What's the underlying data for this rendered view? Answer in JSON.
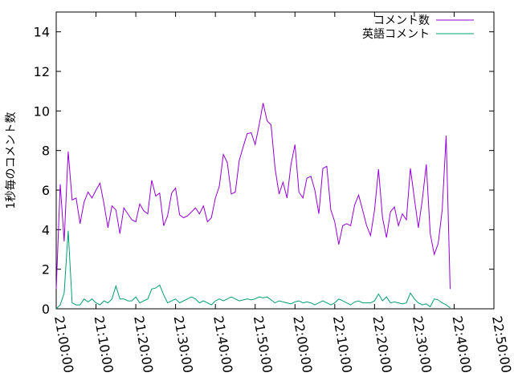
{
  "chart_data": {
    "type": "line",
    "title": "",
    "xlabel": "",
    "ylabel": "1秒毎のコメント数",
    "xlim": [
      "21:00:00",
      "22:50:00"
    ],
    "ylim": [
      0,
      15
    ],
    "x_ticks": [
      "21:00:00",
      "21:10:00",
      "21:20:00",
      "21:30:00",
      "21:40:00",
      "21:50:00",
      "22:00:00",
      "22:10:00",
      "22:20:00",
      "22:30:00",
      "22:40:00",
      "22:50:00"
    ],
    "y_ticks": [
      "0",
      "2",
      "4",
      "6",
      "8",
      "10",
      "12",
      "14"
    ],
    "grid": false,
    "legend_position": "top-right",
    "series": [
      {
        "name": "コメント数",
        "color": "#9400d3",
        "points": [
          [
            "21:00:00",
            1.0
          ],
          [
            "21:01:00",
            6.3
          ],
          [
            "21:02:00",
            3.4
          ],
          [
            "21:03:00",
            7.95
          ],
          [
            "21:04:00",
            5.5
          ],
          [
            "21:05:00",
            5.6
          ],
          [
            "21:06:00",
            4.3
          ],
          [
            "21:07:00",
            5.4
          ],
          [
            "21:08:00",
            5.9
          ],
          [
            "21:09:00",
            5.6
          ],
          [
            "21:10:00",
            6.0
          ],
          [
            "21:11:00",
            6.35
          ],
          [
            "21:12:00",
            5.3
          ],
          [
            "21:13:00",
            4.1
          ],
          [
            "21:14:00",
            5.2
          ],
          [
            "21:15:00",
            5.0
          ],
          [
            "21:16:00",
            3.8
          ],
          [
            "21:17:00",
            5.1
          ],
          [
            "21:18:00",
            4.8
          ],
          [
            "21:19:00",
            4.5
          ],
          [
            "21:20:00",
            4.4
          ],
          [
            "21:21:00",
            5.3
          ],
          [
            "21:22:00",
            4.95
          ],
          [
            "21:23:00",
            4.8
          ],
          [
            "21:24:00",
            6.5
          ],
          [
            "21:25:00",
            5.7
          ],
          [
            "21:26:00",
            5.85
          ],
          [
            "21:27:00",
            4.2
          ],
          [
            "21:28:00",
            4.7
          ],
          [
            "21:29:00",
            5.85
          ],
          [
            "21:30:00",
            6.1
          ],
          [
            "21:31:00",
            4.75
          ],
          [
            "21:32:00",
            4.6
          ],
          [
            "21:33:00",
            4.7
          ],
          [
            "21:34:00",
            4.9
          ],
          [
            "21:35:00",
            5.1
          ],
          [
            "21:36:00",
            4.8
          ],
          [
            "21:37:00",
            5.2
          ],
          [
            "21:38:00",
            4.4
          ],
          [
            "21:39:00",
            4.6
          ],
          [
            "21:40:00",
            5.6
          ],
          [
            "21:41:00",
            6.2
          ],
          [
            "21:42:00",
            7.8
          ],
          [
            "21:43:00",
            7.4
          ],
          [
            "21:44:00",
            5.8
          ],
          [
            "21:45:00",
            5.9
          ],
          [
            "21:46:00",
            7.5
          ],
          [
            "21:47:00",
            8.2
          ],
          [
            "21:48:00",
            8.85
          ],
          [
            "21:49:00",
            8.9
          ],
          [
            "21:50:00",
            8.3
          ],
          [
            "21:51:00",
            9.3
          ],
          [
            "21:52:00",
            10.4
          ],
          [
            "21:53:00",
            9.5
          ],
          [
            "21:54:00",
            9.3
          ],
          [
            "21:55:00",
            7.1
          ],
          [
            "21:56:00",
            5.8
          ],
          [
            "21:57:00",
            6.4
          ],
          [
            "21:58:00",
            5.6
          ],
          [
            "21:59:00",
            7.3
          ],
          [
            "22:00:00",
            8.3
          ],
          [
            "22:01:00",
            5.9
          ],
          [
            "22:02:00",
            5.6
          ],
          [
            "22:03:00",
            6.6
          ],
          [
            "22:04:00",
            6.7
          ],
          [
            "22:05:00",
            6.0
          ],
          [
            "22:06:00",
            4.8
          ],
          [
            "22:07:00",
            7.1
          ],
          [
            "22:08:00",
            7.2
          ],
          [
            "22:09:00",
            5.0
          ],
          [
            "22:10:00",
            4.4
          ],
          [
            "22:11:00",
            3.25
          ],
          [
            "22:12:00",
            4.2
          ],
          [
            "22:13:00",
            4.3
          ],
          [
            "22:14:00",
            4.2
          ],
          [
            "22:15:00",
            5.25
          ],
          [
            "22:16:00",
            5.75
          ],
          [
            "22:17:00",
            5.0
          ],
          [
            "22:18:00",
            4.2
          ],
          [
            "22:19:00",
            3.7
          ],
          [
            "22:20:00",
            5.0
          ],
          [
            "22:21:00",
            7.05
          ],
          [
            "22:22:00",
            4.6
          ],
          [
            "22:23:00",
            3.6
          ],
          [
            "22:24:00",
            4.9
          ],
          [
            "22:25:00",
            5.15
          ],
          [
            "22:26:00",
            4.2
          ],
          [
            "22:27:00",
            4.8
          ],
          [
            "22:28:00",
            4.5
          ],
          [
            "22:29:00",
            7.1
          ],
          [
            "22:30:00",
            5.6
          ],
          [
            "22:31:00",
            4.1
          ],
          [
            "22:32:00",
            5.5
          ],
          [
            "22:33:00",
            7.3
          ],
          [
            "22:34:00",
            3.8
          ],
          [
            "22:35:00",
            2.75
          ],
          [
            "22:36:00",
            3.3
          ],
          [
            "22:37:00",
            5.0
          ],
          [
            "22:38:00",
            8.75
          ],
          [
            "22:39:00",
            1.0
          ]
        ]
      },
      {
        "name": "英語コメント",
        "color": "#009e73",
        "points": [
          [
            "21:00:00",
            0.0
          ],
          [
            "21:01:00",
            0.2
          ],
          [
            "21:02:00",
            0.8
          ],
          [
            "21:03:00",
            3.95
          ],
          [
            "21:04:00",
            0.3
          ],
          [
            "21:05:00",
            0.2
          ],
          [
            "21:06:00",
            0.2
          ],
          [
            "21:07:00",
            0.5
          ],
          [
            "21:08:00",
            0.35
          ],
          [
            "21:09:00",
            0.5
          ],
          [
            "21:10:00",
            0.3
          ],
          [
            "21:11:00",
            0.2
          ],
          [
            "21:12:00",
            0.4
          ],
          [
            "21:13:00",
            0.3
          ],
          [
            "21:14:00",
            0.5
          ],
          [
            "21:15:00",
            1.15
          ],
          [
            "21:16:00",
            0.5
          ],
          [
            "21:17:00",
            0.5
          ],
          [
            "21:18:00",
            0.4
          ],
          [
            "21:19:00",
            0.4
          ],
          [
            "21:20:00",
            0.6
          ],
          [
            "21:21:00",
            0.3
          ],
          [
            "21:22:00",
            0.4
          ],
          [
            "21:23:00",
            0.5
          ],
          [
            "21:24:00",
            1.0
          ],
          [
            "21:25:00",
            1.05
          ],
          [
            "21:26:00",
            1.2
          ],
          [
            "21:27:00",
            0.7
          ],
          [
            "21:28:00",
            0.3
          ],
          [
            "21:29:00",
            0.4
          ],
          [
            "21:30:00",
            0.5
          ],
          [
            "21:31:00",
            0.3
          ],
          [
            "21:32:00",
            0.4
          ],
          [
            "21:33:00",
            0.5
          ],
          [
            "21:34:00",
            0.6
          ],
          [
            "21:35:00",
            0.5
          ],
          [
            "21:36:00",
            0.3
          ],
          [
            "21:37:00",
            0.4
          ],
          [
            "21:38:00",
            0.3
          ],
          [
            "21:39:00",
            0.2
          ],
          [
            "21:40:00",
            0.4
          ],
          [
            "21:41:00",
            0.5
          ],
          [
            "21:42:00",
            0.4
          ],
          [
            "21:43:00",
            0.5
          ],
          [
            "21:44:00",
            0.6
          ],
          [
            "21:45:00",
            0.5
          ],
          [
            "21:46:00",
            0.4
          ],
          [
            "21:47:00",
            0.45
          ],
          [
            "21:48:00",
            0.5
          ],
          [
            "21:49:00",
            0.45
          ],
          [
            "21:50:00",
            0.5
          ],
          [
            "21:51:00",
            0.6
          ],
          [
            "21:52:00",
            0.55
          ],
          [
            "21:53:00",
            0.6
          ],
          [
            "21:54:00",
            0.45
          ],
          [
            "21:55:00",
            0.3
          ],
          [
            "21:56:00",
            0.4
          ],
          [
            "21:57:00",
            0.35
          ],
          [
            "21:58:00",
            0.3
          ],
          [
            "21:59:00",
            0.25
          ],
          [
            "22:00:00",
            0.35
          ],
          [
            "22:01:00",
            0.4
          ],
          [
            "22:02:00",
            0.3
          ],
          [
            "22:03:00",
            0.35
          ],
          [
            "22:04:00",
            0.3
          ],
          [
            "22:05:00",
            0.2
          ],
          [
            "22:06:00",
            0.3
          ],
          [
            "22:07:00",
            0.4
          ],
          [
            "22:08:00",
            0.3
          ],
          [
            "22:09:00",
            0.2
          ],
          [
            "22:10:00",
            0.3
          ],
          [
            "22:11:00",
            0.5
          ],
          [
            "22:12:00",
            0.4
          ],
          [
            "22:13:00",
            0.3
          ],
          [
            "22:14:00",
            0.2
          ],
          [
            "22:15:00",
            0.35
          ],
          [
            "22:16:00",
            0.4
          ],
          [
            "22:17:00",
            0.3
          ],
          [
            "22:18:00",
            0.3
          ],
          [
            "22:19:00",
            0.3
          ],
          [
            "22:20:00",
            0.4
          ],
          [
            "22:21:00",
            0.75
          ],
          [
            "22:22:00",
            0.4
          ],
          [
            "22:23:00",
            0.6
          ],
          [
            "22:24:00",
            0.3
          ],
          [
            "22:25:00",
            0.35
          ],
          [
            "22:26:00",
            0.3
          ],
          [
            "22:27:00",
            0.25
          ],
          [
            "22:28:00",
            0.3
          ],
          [
            "22:29:00",
            0.8
          ],
          [
            "22:30:00",
            0.5
          ],
          [
            "22:31:00",
            0.3
          ],
          [
            "22:32:00",
            0.2
          ],
          [
            "22:33:00",
            0.25
          ],
          [
            "22:34:00",
            0.1
          ],
          [
            "22:35:00",
            0.5
          ],
          [
            "22:36:00",
            0.45
          ],
          [
            "22:37:00",
            0.3
          ],
          [
            "22:38:00",
            0.2
          ],
          [
            "22:39:00",
            0.05
          ]
        ]
      }
    ]
  }
}
